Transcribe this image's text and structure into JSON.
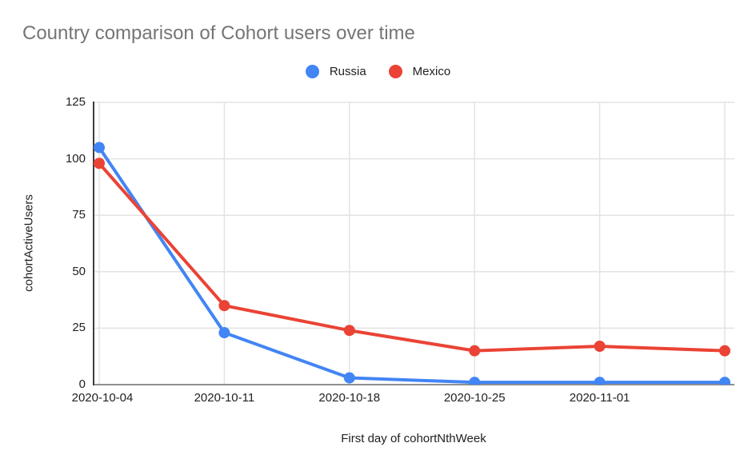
{
  "chart_data": {
    "type": "line",
    "title": "Country comparison of Cohort users over time",
    "xlabel": "First day of cohortNthWeek",
    "ylabel": "cohortActiveUsers",
    "categories": [
      "2020-10-04",
      "2020-10-11",
      "2020-10-18",
      "2020-10-25",
      "2020-11-01",
      ""
    ],
    "series": [
      {
        "name": "Russia",
        "color": "#4285F4",
        "values": [
          105,
          23,
          3,
          1,
          1,
          1
        ]
      },
      {
        "name": "Mexico",
        "color": "#EA4335",
        "values": [
          98,
          35,
          24,
          15,
          17,
          15
        ]
      }
    ],
    "ylim": [
      0,
      125
    ],
    "y_ticks": [
      0,
      25,
      50,
      75,
      100,
      125
    ],
    "grid": true,
    "legend_position": "top-center",
    "colors": {
      "title_text": "#757575",
      "tick_label_text": "#212121",
      "gridline": "#e3e3e3",
      "y_axis_line": "#3c3c3c",
      "x_axis_line": "#8f8f8f",
      "background": "#ffffff"
    }
  }
}
